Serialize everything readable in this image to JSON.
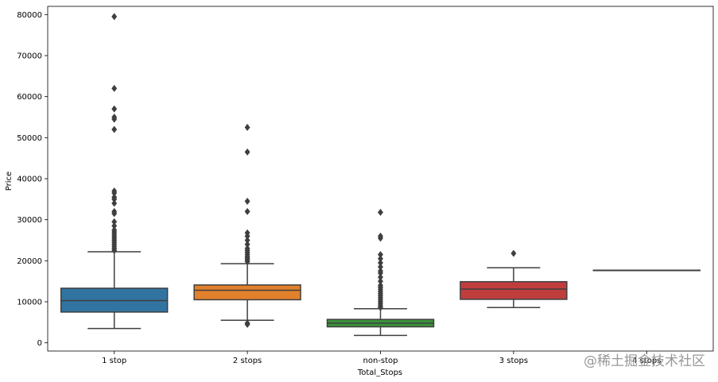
{
  "chart_data": {
    "type": "box",
    "xlabel": "Total_Stops",
    "ylabel": "Price",
    "ylim": [
      -2000,
      82000
    ],
    "yticks": [
      0,
      10000,
      20000,
      30000,
      40000,
      50000,
      60000,
      70000,
      80000
    ],
    "ytick_labels": [
      "0",
      "10000",
      "20000",
      "30000",
      "40000",
      "50000",
      "60000",
      "70000",
      "80000"
    ],
    "categories": [
      "1 stop",
      "2 stops",
      "non-stop",
      "3 stops",
      "4 stops"
    ],
    "colors": [
      "#3274a1",
      "#e1812c",
      "#3a923a",
      "#c03d3e",
      "#9372b2"
    ],
    "boxes": [
      {
        "name": "1 stop",
        "whisker_low": 3500,
        "q1": 7500,
        "median": 10300,
        "q3": 13300,
        "whisker_high": 22200,
        "outliers": [
          22500,
          23000,
          23500,
          24000,
          24500,
          25000,
          25500,
          26000,
          26500,
          27000,
          27500,
          28500,
          29500,
          31500,
          32000,
          34000,
          35000,
          35500,
          36500,
          37000,
          52000,
          54500,
          55000,
          57000,
          62000,
          79500
        ]
      },
      {
        "name": "2 stops",
        "whisker_low": 5500,
        "q1": 10500,
        "median": 12800,
        "q3": 14100,
        "whisker_high": 19300,
        "outliers": [
          4500,
          4800,
          19800,
          20200,
          20600,
          21000,
          21500,
          22000,
          22500,
          23000,
          24000,
          25000,
          26000,
          26800,
          32000,
          34500,
          46500,
          52500
        ]
      },
      {
        "name": "non-stop",
        "whisker_low": 1800,
        "q1": 3900,
        "median": 4800,
        "q3": 5700,
        "whisker_high": 8300,
        "outliers": [
          8600,
          9000,
          9500,
          10000,
          10500,
          11000,
          11500,
          12000,
          12500,
          13000,
          13500,
          14000,
          15000,
          16000,
          17000,
          17500,
          18500,
          19500,
          20500,
          21500,
          25500,
          26000,
          31800
        ]
      },
      {
        "name": "3 stops",
        "whisker_low": 8600,
        "q1": 10600,
        "median": 13100,
        "q3": 14900,
        "whisker_high": 18300,
        "outliers": [
          21800
        ]
      },
      {
        "name": "4 stops",
        "whisker_low": 17700,
        "q1": 17700,
        "median": 17700,
        "q3": 17700,
        "whisker_high": 17700,
        "outliers": []
      }
    ]
  },
  "watermark": "@稀土掘金技术社区"
}
